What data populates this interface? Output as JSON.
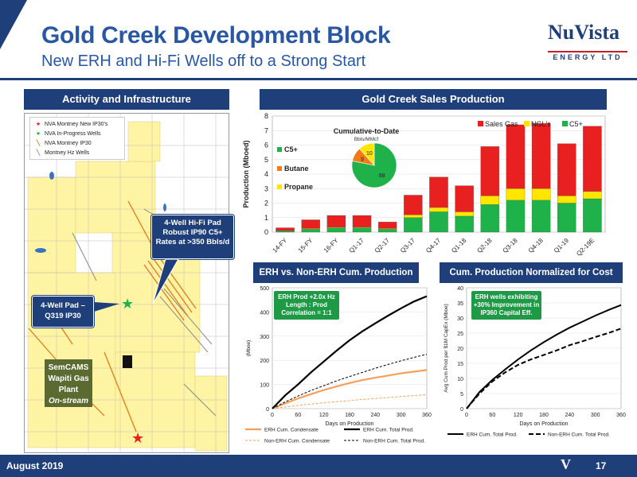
{
  "header": {
    "title": "Gold Creek Development Block",
    "subtitle": "New ERH and Hi-Fi Wells off to a Strong Start",
    "logo_main": "NuVista",
    "logo_sub": "ENERGY LTD"
  },
  "colors": {
    "navy": "#1f3f7a",
    "sales_gas": "#e8201f",
    "ngls": "#ffe600",
    "c5": "#1fb24a",
    "butane": "#f07c18",
    "erh_orange": "#f5a05a"
  },
  "left_panel": {
    "header": "Activity and Infrastructure",
    "legend": [
      {
        "icon": "red-star-icon",
        "label": "NVA Montney New IP30's"
      },
      {
        "icon": "green-star-icon",
        "label": "NVA In-Progress Wells"
      },
      {
        "icon": "orange-line-icon",
        "label": "NVA Montney IP30"
      },
      {
        "icon": "grey-line-icon",
        "label": "Montney Hz Wells"
      }
    ],
    "callout_hifi": "4-Well Hi-Fi Pad Robust IP90 C5+ Rates at >350 Bbls/d",
    "callout_pad": "4-Well Pad – Q319 IP30",
    "plant": {
      "line1": "SemCAMS",
      "line2": "Wapiti Gas",
      "line3": "Plant",
      "line4": "On-stream"
    }
  },
  "sales_chart": {
    "header": "Gold Creek Sales Production",
    "legend": [
      "Sales Gas",
      "NGL's",
      "C5+"
    ],
    "ylabel": "Production (Mboed)",
    "inset": {
      "title": "Cumulative-to-Date",
      "subtitle": "Bbls/MMcf",
      "labels": [
        "C5+",
        "Butane",
        "Propane"
      ]
    }
  },
  "erh_chart": {
    "header": "ERH vs. Non-ERH Cum. Production",
    "callout": "ERH Prod +2.0x Hz Length : Prod Correlation = 1:1",
    "ylabel": "(Mboe)",
    "xlabel": "Days on Production",
    "legend": [
      "ERH Cum. Condensate",
      "ERH Cum. Total Prod.",
      "Non-ERH Cum. Condensate",
      "Non-ERH Cum. Total Prod."
    ]
  },
  "cost_chart": {
    "header": "Cum. Production Normalized for Cost",
    "callout": "ERH wells exhibiting +30% Improvement in IP360 Capital Eff.",
    "ylabel": "Avg Cum Prod per $1M CapEx (Mboe)",
    "xlabel": "Days on Production",
    "legend": [
      "ERH Cum. Total Prod.",
      "Non-ERH Cum. Total Prod."
    ]
  },
  "footer": {
    "date": "August 2019",
    "page": "17",
    "mark": "V"
  },
  "chart_data": [
    {
      "type": "bar",
      "categories": [
        "14-FY",
        "15-FY",
        "16-FY",
        "Q1-17",
        "Q2-17",
        "Q3-17",
        "Q4-17",
        "Q1-18",
        "Q2-18",
        "Q3-18",
        "Q4-18",
        "Q1-19",
        "Q2-19E"
      ],
      "series": [
        {
          "name": "C5+",
          "values": [
            0.1,
            0.2,
            0.3,
            0.3,
            0.2,
            1.0,
            1.4,
            1.1,
            1.9,
            2.2,
            2.2,
            2.0,
            2.3
          ]
        },
        {
          "name": "NGL's",
          "values": [
            0.0,
            0.05,
            0.05,
            0.05,
            0.05,
            0.2,
            0.3,
            0.3,
            0.6,
            0.8,
            0.8,
            0.5,
            0.5
          ]
        },
        {
          "name": "Sales Gas",
          "values": [
            0.2,
            0.6,
            0.8,
            0.8,
            0.45,
            1.35,
            2.1,
            1.8,
            3.4,
            4.4,
            4.5,
            3.6,
            4.5
          ]
        }
      ],
      "ylim": [
        0,
        8
      ],
      "yticks": [
        0,
        1,
        2,
        3,
        4,
        5,
        6,
        7,
        8
      ],
      "stacked": true,
      "legend": "top-right"
    },
    {
      "type": "pie",
      "labels": [
        "C5+",
        "Butane",
        "Propane"
      ],
      "values": [
        68,
        9,
        10
      ],
      "title": "Cumulative-to-Date",
      "subtitle": "Bbls/MMcf"
    },
    {
      "type": "line",
      "x": [
        0,
        30,
        60,
        90,
        120,
        150,
        180,
        210,
        240,
        270,
        300,
        330,
        360
      ],
      "series": [
        {
          "name": "ERH Cum. Condensate",
          "values": [
            0,
            22,
            42,
            60,
            77,
            92,
            106,
            118,
            128,
            137,
            146,
            153,
            160
          ]
        },
        {
          "name": "ERH Cum. Total Prod.",
          "values": [
            0,
            55,
            100,
            150,
            195,
            240,
            283,
            320,
            353,
            385,
            415,
            443,
            465
          ]
        },
        {
          "name": "Non-ERH Cum. Condensate",
          "values": [
            0,
            7,
            13,
            19,
            24,
            29,
            33,
            38,
            42,
            46,
            50,
            54,
            58
          ]
        },
        {
          "name": "Non-ERH Cum. Total Prod.",
          "values": [
            0,
            28,
            52,
            75,
            95,
            115,
            133,
            150,
            167,
            183,
            198,
            212,
            225
          ]
        }
      ],
      "xticks": [
        0,
        60,
        120,
        180,
        240,
        300,
        360
      ],
      "yticks": [
        0,
        100,
        200,
        300,
        400,
        500
      ],
      "xlim": [
        0,
        360
      ],
      "ylim": [
        0,
        500
      ],
      "xlabel": "Days on Production",
      "ylabel": "(Mboe)",
      "legend": "bottom"
    },
    {
      "type": "line",
      "x": [
        0,
        30,
        60,
        90,
        120,
        150,
        180,
        210,
        240,
        270,
        300,
        330,
        360
      ],
      "series": [
        {
          "name": "ERH Cum. Total Prod.",
          "values": [
            0,
            5.5,
            9.5,
            13,
            16.3,
            19.3,
            22,
            24.5,
            26.8,
            28.8,
            30.8,
            32.6,
            34.3
          ]
        },
        {
          "name": "Non-ERH Cum. Total Prod.",
          "values": [
            0,
            5,
            9,
            12,
            14.5,
            16.3,
            17.8,
            19.3,
            21,
            22.3,
            23.7,
            25,
            26.5
          ]
        }
      ],
      "xticks": [
        0,
        60,
        120,
        180,
        240,
        300,
        360
      ],
      "yticks": [
        0,
        5,
        10,
        15,
        20,
        25,
        30,
        35,
        40
      ],
      "xlim": [
        0,
        360
      ],
      "ylim": [
        0,
        40
      ],
      "xlabel": "Days on Production",
      "ylabel": "Avg Cum Prod per $1M CapEx (Mboe)",
      "legend": "bottom"
    }
  ]
}
